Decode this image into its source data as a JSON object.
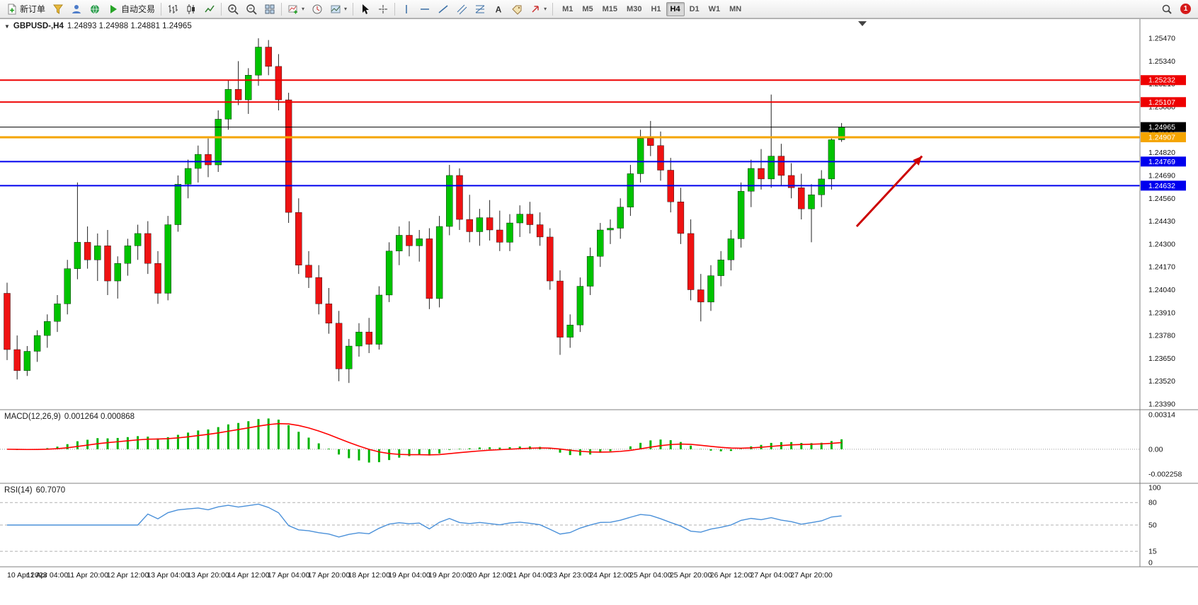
{
  "toolbar": {
    "new_order": "新订单",
    "autotrade": "自动交易",
    "timeframes": [
      "M1",
      "M5",
      "M15",
      "M30",
      "H1",
      "H4",
      "D1",
      "W1",
      "MN"
    ],
    "active_timeframe": "H4",
    "notification_count": "1"
  },
  "chart": {
    "symbol_title": "GBPUSD-,H4",
    "ohlc_text": "1.24893 1.24988 1.24881 1.24965"
  },
  "chart_data": {
    "type": "candlestick",
    "symbol": "GBPUSD-",
    "period": "H4",
    "current": {
      "open": 1.24893,
      "high": 1.24988,
      "low": 1.24881,
      "close": 1.24965
    },
    "price_range": [
      1.23358,
      1.25579
    ],
    "y_ticks": [
      1.2547,
      1.2534,
      1.2521,
      1.2508,
      1.2495,
      1.2482,
      1.2469,
      1.2456,
      1.2443,
      1.243,
      1.2417,
      1.2404,
      1.2391,
      1.2378,
      1.2365,
      1.2352,
      1.2339
    ],
    "price_lines": [
      {
        "price": 1.25232,
        "label": "1.25232",
        "color": "#ee0000",
        "width": 2
      },
      {
        "price": 1.25107,
        "label": "1.25107",
        "color": "#ee0000",
        "width": 2
      },
      {
        "price": 1.24965,
        "label": "1.24965",
        "color": "#000000",
        "width": 1
      },
      {
        "price": 1.24907,
        "label": "1.24907",
        "color": "#f5a500",
        "width": 3
      },
      {
        "price": 1.24769,
        "label": "1.24769",
        "color": "#0000ee",
        "width": 2
      },
      {
        "price": 1.24632,
        "label": "1.24632",
        "color": "#0000ee",
        "width": 2
      }
    ],
    "x_labels": [
      "10 Apr 2023",
      "11 Apr 04:00",
      "11 Apr 20:00",
      "12 Apr 12:00",
      "13 Apr 04:00",
      "13 Apr 20:00",
      "14 Apr 12:00",
      "17 Apr 04:00",
      "17 Apr 20:00",
      "18 Apr 12:00",
      "19 Apr 04:00",
      "19 Apr 20:00",
      "20 Apr 12:00",
      "21 Apr 04:00",
      "23 Apr 23:00",
      "24 Apr 12:00",
      "25 Apr 04:00",
      "25 Apr 20:00",
      "26 Apr 12:00",
      "27 Apr 04:00",
      "27 Apr 20:00"
    ],
    "candles": [
      [
        1.2402,
        1.2408,
        1.2364,
        1.237
      ],
      [
        1.237,
        1.2378,
        1.2353,
        1.2358
      ],
      [
        1.2358,
        1.2372,
        1.2355,
        1.2369
      ],
      [
        1.2369,
        1.2381,
        1.2363,
        1.2378
      ],
      [
        1.2378,
        1.239,
        1.2371,
        1.2386
      ],
      [
        1.2386,
        1.2401,
        1.238,
        1.2396
      ],
      [
        1.2396,
        1.2421,
        1.239,
        1.2416
      ],
      [
        1.2416,
        1.2465,
        1.241,
        1.2431
      ],
      [
        1.2431,
        1.244,
        1.2416,
        1.2421
      ],
      [
        1.2421,
        1.2436,
        1.2409,
        1.2429
      ],
      [
        1.2429,
        1.2438,
        1.2401,
        1.2409
      ],
      [
        1.2409,
        1.2423,
        1.2399,
        1.2419
      ],
      [
        1.2419,
        1.2433,
        1.2412,
        1.2429
      ],
      [
        1.2429,
        1.2441,
        1.2421,
        1.2436
      ],
      [
        1.2436,
        1.2443,
        1.2413,
        1.2419
      ],
      [
        1.2419,
        1.2426,
        1.2396,
        1.2402
      ],
      [
        1.2402,
        1.2446,
        1.2398,
        1.2441
      ],
      [
        1.2441,
        1.2469,
        1.2437,
        1.2464
      ],
      [
        1.2464,
        1.2478,
        1.2456,
        1.2473
      ],
      [
        1.2473,
        1.2486,
        1.2465,
        1.2481
      ],
      [
        1.2481,
        1.249,
        1.2468,
        1.2475
      ],
      [
        1.2475,
        1.2506,
        1.2471,
        1.2501
      ],
      [
        1.2501,
        1.2523,
        1.2495,
        1.2518
      ],
      [
        1.2518,
        1.2534,
        1.2509,
        1.2512
      ],
      [
        1.2512,
        1.253,
        1.2504,
        1.2526
      ],
      [
        1.2526,
        1.2547,
        1.252,
        1.2542
      ],
      [
        1.2542,
        1.2546,
        1.2526,
        1.2531
      ],
      [
        1.2531,
        1.2538,
        1.2506,
        1.2512
      ],
      [
        1.2512,
        1.2516,
        1.2442,
        1.2448
      ],
      [
        1.2448,
        1.2456,
        1.2413,
        1.2418
      ],
      [
        1.2418,
        1.2426,
        1.2405,
        1.2411
      ],
      [
        1.2411,
        1.2418,
        1.239,
        1.2396
      ],
      [
        1.2396,
        1.2405,
        1.2379,
        1.2385
      ],
      [
        1.2385,
        1.2392,
        1.2352,
        1.2359
      ],
      [
        1.2359,
        1.2376,
        1.2351,
        1.2372
      ],
      [
        1.2372,
        1.2385,
        1.2366,
        1.238
      ],
      [
        1.238,
        1.2388,
        1.2368,
        1.2373
      ],
      [
        1.2373,
        1.2406,
        1.237,
        1.2401
      ],
      [
        1.2401,
        1.2431,
        1.2397,
        1.2426
      ],
      [
        1.2426,
        1.244,
        1.2418,
        1.2435
      ],
      [
        1.2435,
        1.2443,
        1.2423,
        1.2429
      ],
      [
        1.2429,
        1.2438,
        1.242,
        1.2433
      ],
      [
        1.2433,
        1.2439,
        1.2393,
        1.2399
      ],
      [
        1.2399,
        1.2446,
        1.2394,
        1.244
      ],
      [
        1.244,
        1.2475,
        1.2435,
        1.2469
      ],
      [
        1.2469,
        1.2473,
        1.2438,
        1.2444
      ],
      [
        1.2444,
        1.2458,
        1.2431,
        1.2437
      ],
      [
        1.2437,
        1.245,
        1.2429,
        1.2445
      ],
      [
        1.2445,
        1.2455,
        1.2432,
        1.2438
      ],
      [
        1.2438,
        1.2449,
        1.2426,
        1.2431
      ],
      [
        1.2431,
        1.2447,
        1.2426,
        1.2442
      ],
      [
        1.2442,
        1.2452,
        1.2434,
        1.2447
      ],
      [
        1.2447,
        1.2454,
        1.2436,
        1.2441
      ],
      [
        1.2441,
        1.2448,
        1.2429,
        1.2434
      ],
      [
        1.2434,
        1.2439,
        1.2404,
        1.2409
      ],
      [
        1.2409,
        1.2415,
        1.2367,
        1.2377
      ],
      [
        1.2377,
        1.239,
        1.2371,
        1.2384
      ],
      [
        1.2384,
        1.2411,
        1.238,
        1.2406
      ],
      [
        1.2406,
        1.2428,
        1.2401,
        1.2423
      ],
      [
        1.2423,
        1.2442,
        1.2417,
        1.2438
      ],
      [
        1.2438,
        1.2444,
        1.243,
        1.2439
      ],
      [
        1.2439,
        1.2456,
        1.2433,
        1.2451
      ],
      [
        1.2451,
        1.2475,
        1.2446,
        1.247
      ],
      [
        1.247,
        1.2495,
        1.2465,
        1.249
      ],
      [
        1.249,
        1.25,
        1.248,
        1.2486
      ],
      [
        1.2486,
        1.2494,
        1.2466,
        1.2472
      ],
      [
        1.2472,
        1.2479,
        1.2448,
        1.2454
      ],
      [
        1.2454,
        1.2462,
        1.243,
        1.2436
      ],
      [
        1.2436,
        1.2444,
        1.2398,
        1.2404
      ],
      [
        1.2404,
        1.2413,
        1.2386,
        1.2397
      ],
      [
        1.2397,
        1.2418,
        1.2392,
        1.2412
      ],
      [
        1.2412,
        1.2426,
        1.2406,
        1.2421
      ],
      [
        1.2421,
        1.2438,
        1.2415,
        1.2433
      ],
      [
        1.2433,
        1.2465,
        1.2428,
        1.246
      ],
      [
        1.246,
        1.2478,
        1.2451,
        1.2473
      ],
      [
        1.2473,
        1.2484,
        1.2461,
        1.2467
      ],
      [
        1.2467,
        1.2515,
        1.2462,
        1.248
      ],
      [
        1.248,
        1.2487,
        1.2463,
        1.2469
      ],
      [
        1.2469,
        1.2476,
        1.2456,
        1.2462
      ],
      [
        1.2462,
        1.247,
        1.2444,
        1.245
      ],
      [
        1.245,
        1.2464,
        1.2431,
        1.2458
      ],
      [
        1.2458,
        1.2472,
        1.2451,
        1.2467
      ],
      [
        1.2467,
        1.249,
        1.2461,
        1.24893
      ],
      [
        1.24893,
        1.24988,
        1.24881,
        1.24965
      ]
    ],
    "colors": {
      "up": "#00c300",
      "down": "#ef1212",
      "wick": "#222222",
      "macd_signal": "#ff0000",
      "macd_hist": "#00b400",
      "rsi_line": "#4a90d9",
      "arrow": "#cc0000"
    },
    "annotation_arrow": {
      "from": {
        "index": 84.5,
        "price": 1.244
      },
      "to": {
        "index": 91,
        "price": 1.248
      }
    },
    "indicators": {
      "macd": {
        "label": "MACD(12,26,9)",
        "values": "0.001264 0.000868",
        "fast": 12,
        "slow": 26,
        "signal": 9,
        "axis_labels": [
          "0.00314",
          "0.00",
          "-0.002258"
        ]
      },
      "rsi": {
        "label": "RSI(14)",
        "value": "60.7070",
        "period": 14,
        "axis_labels": [
          "100",
          "80",
          "50",
          "15",
          "0"
        ],
        "levels": [
          80,
          50,
          15
        ]
      }
    }
  }
}
